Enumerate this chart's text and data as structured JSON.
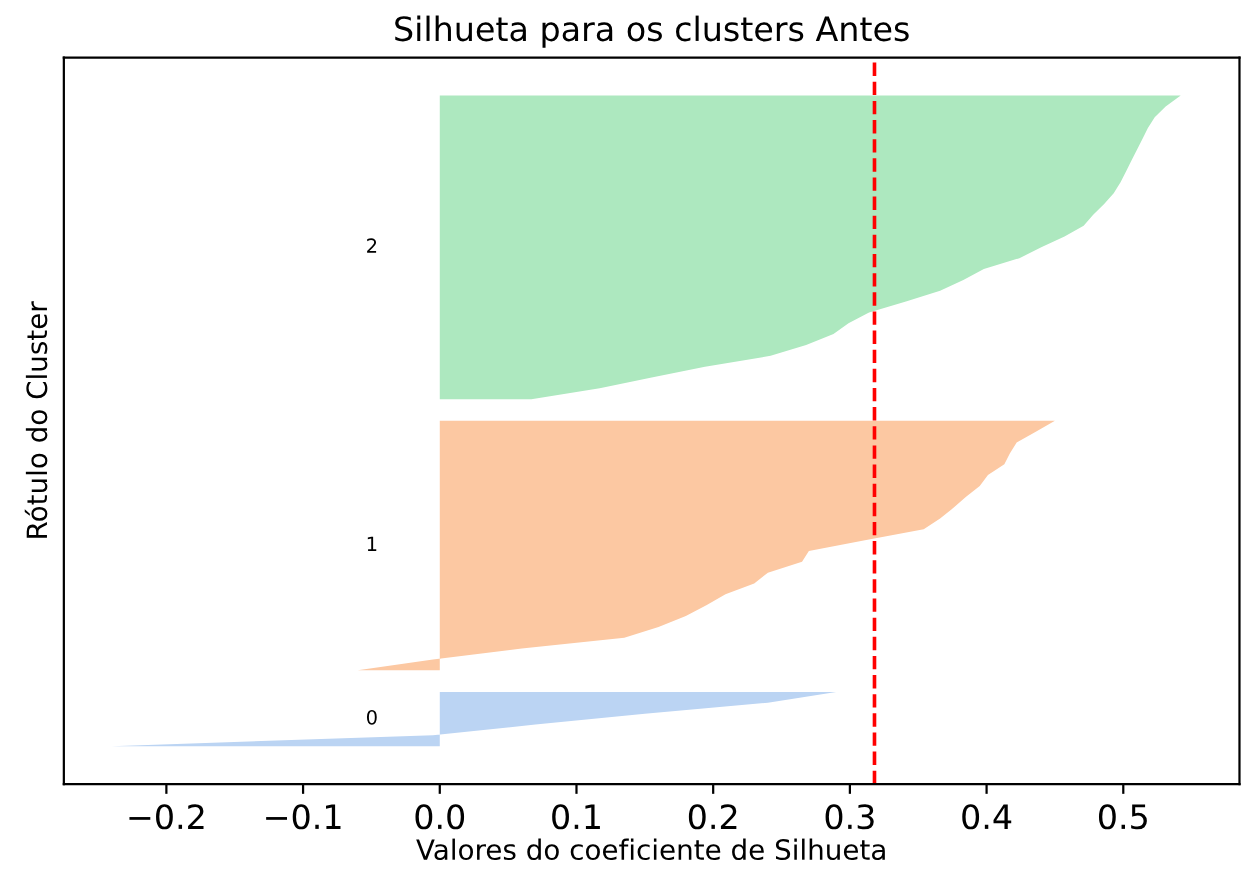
{
  "chart_data": {
    "type": "area",
    "orientation": "horizontal",
    "title": "Silhueta para os clusters Antes",
    "xlabel": "Valores do coeficiente de Silhueta",
    "ylabel": "Rótulo do Cluster",
    "xlim": [
      -0.275,
      0.585
    ],
    "xticks": [
      {
        "value": -0.2,
        "label": "−0.2"
      },
      {
        "value": -0.1,
        "label": "−0.1"
      },
      {
        "value": 0,
        "label": "0.0"
      },
      {
        "value": 0.1,
        "label": "0.1"
      },
      {
        "value": 0.2,
        "label": "0.2"
      },
      {
        "value": 0.3,
        "label": "0.3"
      },
      {
        "value": 0.4,
        "label": "0.4"
      },
      {
        "value": 0.5,
        "label": "0.5"
      }
    ],
    "tick_labels": "x",
    "legend": false,
    "categories": [
      null,
      null,
      null,
      null,
      null,
      null,
      null,
      null,
      null,
      null,
      null,
      null,
      null,
      null,
      null,
      null,
      null,
      null,
      null,
      null,
      null,
      null,
      null,
      null,
      null,
      null,
      null,
      null,
      null,
      null,
      null,
      null,
      null,
      null,
      null,
      null,
      null,
      null,
      null,
      null,
      null,
      null,
      null,
      null,
      null,
      null,
      null,
      null,
      null,
      null,
      null,
      null,
      null,
      null,
      null,
      null,
      null,
      null,
      null,
      null,
      null,
      null,
      null,
      null,
      null,
      null,
      null
    ],
    "series": [
      {
        "color": "#bbd4f3",
        "values": [
          null,
          null,
          null,
          null,
          null,
          null,
          null,
          null,
          null,
          null,
          null,
          null,
          null,
          null,
          null,
          null,
          null,
          null,
          null,
          null,
          null,
          null,
          null,
          null,
          null,
          null,
          null,
          null,
          null,
          null,
          null,
          null,
          null,
          null,
          null,
          null,
          null,
          null,
          null,
          null,
          null,
          null,
          null,
          null,
          null,
          null,
          null,
          null,
          null,
          null,
          null,
          null,
          null,
          null,
          null,
          null,
          null,
          null,
          0.29,
          0.24,
          0.15,
          0.07,
          -0.005,
          -0.24,
          null,
          null,
          null
        ]
      },
      {
        "color": "#fcc8a2",
        "values": [
          null,
          null,
          null,
          null,
          null,
          null,
          null,
          null,
          null,
          null,
          null,
          null,
          null,
          null,
          null,
          null,
          null,
          null,
          null,
          null,
          null,
          null,
          null,
          null,
          null,
          null,
          null,
          null,
          null,
          null,
          null,
          null,
          null,
          0.45,
          0.436,
          0.422,
          0.417,
          0.413,
          0.401,
          0.395,
          0.385,
          0.376,
          0.366,
          0.354,
          0.311,
          0.27,
          0.265,
          0.24,
          0.23,
          0.209,
          0.195,
          0.18,
          0.16,
          0.135,
          0.06,
          -0.005,
          -0.06,
          null,
          null,
          null,
          null,
          null,
          null,
          null,
          null,
          null,
          null
        ]
      },
      {
        "color": "#ade8bf",
        "values": [
          null,
          null,
          null,
          0.542,
          0.531,
          0.523,
          0.518,
          0.514,
          0.51,
          0.506,
          0.502,
          0.498,
          0.493,
          0.486,
          0.478,
          0.471,
          0.457,
          0.44,
          0.424,
          0.398,
          0.383,
          0.366,
          0.341,
          0.314,
          0.299,
          0.288,
          0.268,
          0.242,
          0.194,
          0.155,
          0.117,
          0.067,
          null,
          null,
          null,
          null,
          null,
          null,
          null,
          null,
          null,
          null,
          null,
          null,
          null,
          null,
          null,
          null,
          null,
          null,
          null,
          null,
          null,
          null,
          null,
          null,
          null,
          null,
          null,
          null,
          null,
          null,
          null,
          null,
          null,
          null,
          null
        ]
      }
    ],
    "ref_lines": [
      {
        "axis": "x",
        "value": 0.318,
        "color": "#ff0000",
        "line_style": "dashed"
      }
    ],
    "annotations": [
      "0",
      "1",
      "2"
    ]
  }
}
